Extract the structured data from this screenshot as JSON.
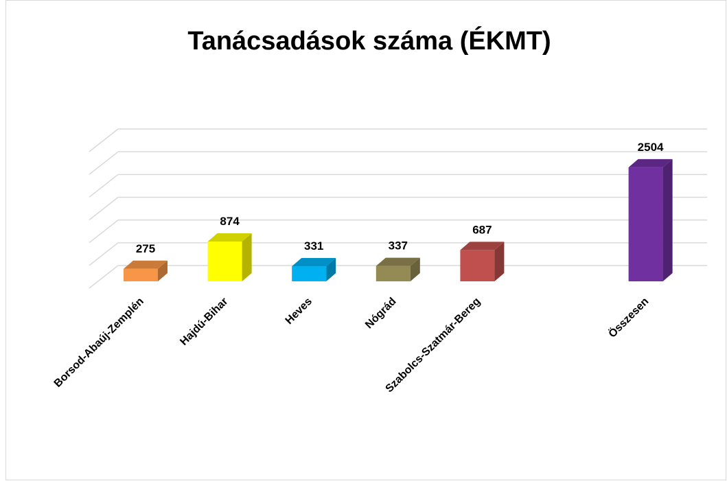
{
  "chart_data": {
    "type": "bar3d",
    "title": "Tanácsadások száma (ÉKMT)",
    "categories": [
      "Borsod-Abaúj-Zemplén",
      "Hajdú-Bihar",
      "Heves",
      "Nógrád",
      "Szabolcs-Szatmár-Bereg",
      null,
      "Összesen"
    ],
    "values": [
      275,
      874,
      331,
      337,
      687,
      null,
      2504
    ],
    "colors": [
      "#f79646",
      "#ffff00",
      "#00b0f0",
      "#948a54",
      "#c0504d",
      null,
      "#7030a0"
    ],
    "ylim": [
      0,
      3000
    ],
    "yticks": [
      0,
      500,
      1000,
      1500,
      2000,
      2500,
      3000
    ],
    "grid": true
  }
}
